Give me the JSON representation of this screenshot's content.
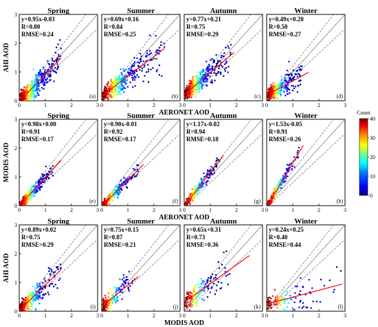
{
  "colorbar": {
    "title": "Count",
    "min": 0,
    "max": 40,
    "ticks": [
      "0",
      "10",
      "20",
      "30",
      "40"
    ],
    "colors": [
      "#00007f",
      "#0000ff",
      "#007fff",
      "#00ffff",
      "#7fff7f",
      "#ffff00",
      "#ff7f00",
      "#ff0000",
      "#7f0000"
    ]
  },
  "chart_data": [
    {
      "type": "scatter",
      "rows": [
        {
          "ylabel": "AHI AOD",
          "xlabel": "AERONET AOD",
          "spread": 0.22,
          "panels": [
            {
              "title": "Spring",
              "slope": 0.95,
              "intercept": -0.03,
              "equation": "y=0.95x-0.03",
              "r": "R=0.80",
              "rmse": "RMSE=0.24",
              "label": "(a)",
              "n": 460,
              "xmax_data": 1.6,
              "line_end": 1.6
            },
            {
              "title": "Summer",
              "slope": 0.69,
              "intercept": 0.16,
              "equation": "y=0.69x+0.16",
              "r": "R=0.84",
              "rmse": "RMSE=0.25",
              "label": "(b)",
              "n": 360,
              "xmax_data": 2.4,
              "line_end": 2.4
            },
            {
              "title": "Autumn",
              "slope": 0.77,
              "intercept": 0.21,
              "equation": "y=0.77x+0.21",
              "r": "R=0.75",
              "rmse": "RMSE=0.29",
              "label": "(c)",
              "n": 380,
              "xmax_data": 1.8,
              "line_end": 1.9
            },
            {
              "title": "Winter",
              "slope": 0.49,
              "intercept": 0.2,
              "equation": "y=0.49x+0.20",
              "r": "R=0.50",
              "rmse": "RMSE=0.27",
              "label": "(d)",
              "n": 300,
              "xmax_data": 1.4,
              "line_end": 1.6
            }
          ]
        },
        {
          "ylabel": "MODIS AOD",
          "xlabel": "AERONET AOD",
          "spread": 0.12,
          "panels": [
            {
              "title": "Spring",
              "slope": 0.98,
              "intercept": 0.0,
              "equation": "y=0.98x+0.00",
              "r": "R=0.91",
              "rmse": "RMSE=0.17",
              "label": "(e)",
              "n": 300,
              "xmax_data": 1.3,
              "line_end": 1.6
            },
            {
              "title": "Summer",
              "slope": 0.9,
              "intercept": -0.01,
              "equation": "y=0.90x-0.01",
              "r": "R=0.92",
              "rmse": "RMSE=0.17",
              "label": "(f)",
              "n": 200,
              "xmax_data": 1.4,
              "line_end": 1.6
            },
            {
              "title": "Autumn",
              "slope": 1.17,
              "intercept": -0.02,
              "equation": "y=1.17x-0.02",
              "r": "R=0.94",
              "rmse": "RMSE=0.18",
              "label": "(g)",
              "n": 190,
              "xmax_data": 1.4,
              "line_end": 1.5
            },
            {
              "title": "Winter",
              "slope": 1.53,
              "intercept": -0.05,
              "equation": "y=1.53x-0.05",
              "r": "R=0.91",
              "rmse": "RMSE=0.26",
              "label": "(h)",
              "n": 170,
              "xmax_data": 1.3,
              "line_end": 1.4
            }
          ]
        },
        {
          "ylabel": "AHI AOD",
          "xlabel": "MODIS AOD",
          "spread": 0.24,
          "panels": [
            {
              "title": "Spring",
              "slope": 0.89,
              "intercept": 0.02,
              "equation": "y=0.89x+0.02",
              "r": "R=0.75",
              "rmse": "RMSE=0.29",
              "label": "(i)",
              "n": 260,
              "xmax_data": 1.6,
              "line_end": 1.6
            },
            {
              "title": "Summer",
              "slope": 0.75,
              "intercept": 0.15,
              "equation": "y=0.75x+0.15",
              "r": "R=0.87",
              "rmse": "RMSE=0.21",
              "label": "(j)",
              "n": 140,
              "xmax_data": 1.3,
              "line_end": 1.4
            },
            {
              "title": "Autumn",
              "slope": 0.65,
              "intercept": 0.31,
              "equation": "y=0.65x+0.31",
              "r": "R=0.73",
              "rmse": "RMSE=0.36",
              "label": "(k)",
              "n": 160,
              "xmax_data": 1.8,
              "line_end": 2.5
            },
            {
              "title": "Winter",
              "slope": 0.24,
              "intercept": 0.25,
              "equation": "y=0.24x+0.25",
              "r": "R=0.40",
              "rmse": "RMSE=0.44",
              "label": "(l)",
              "n": 110,
              "xmax_data": 2.9,
              "line_end": 2.9
            }
          ]
        }
      ],
      "xlim": [
        0,
        3
      ],
      "ylim": [
        0,
        3
      ],
      "ticks": [
        "0",
        "1",
        "2",
        "3"
      ],
      "reference_lines": [
        "y=x",
        "expected error envelope"
      ],
      "fit_line_color": "#ff0000",
      "reference_line_color": "#808080"
    }
  ]
}
